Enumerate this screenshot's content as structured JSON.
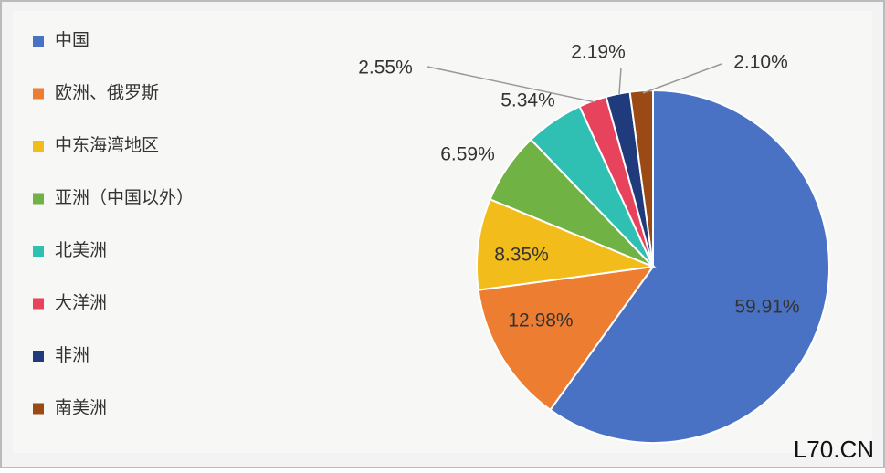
{
  "chart_data": {
    "type": "pie",
    "categories": [
      "中国",
      "欧洲、俄罗斯",
      "中东海湾地区",
      "亚洲（中国以外）",
      "北美洲",
      "大洋洲",
      "非洲",
      "南美洲"
    ],
    "values": [
      59.91,
      12.98,
      8.35,
      6.59,
      5.34,
      2.55,
      2.19,
      2.1
    ],
    "value_labels": [
      "59.91%",
      "12.98%",
      "8.35%",
      "6.59%",
      "5.34%",
      "2.55%",
      "2.19%",
      "2.10%"
    ],
    "colors": [
      "#4a72c4",
      "#ed7d31",
      "#f2bc1a",
      "#70b244",
      "#2fbfb3",
      "#e8435c",
      "#1f3b7b",
      "#9b4a16"
    ]
  },
  "watermark": "L70.CN"
}
